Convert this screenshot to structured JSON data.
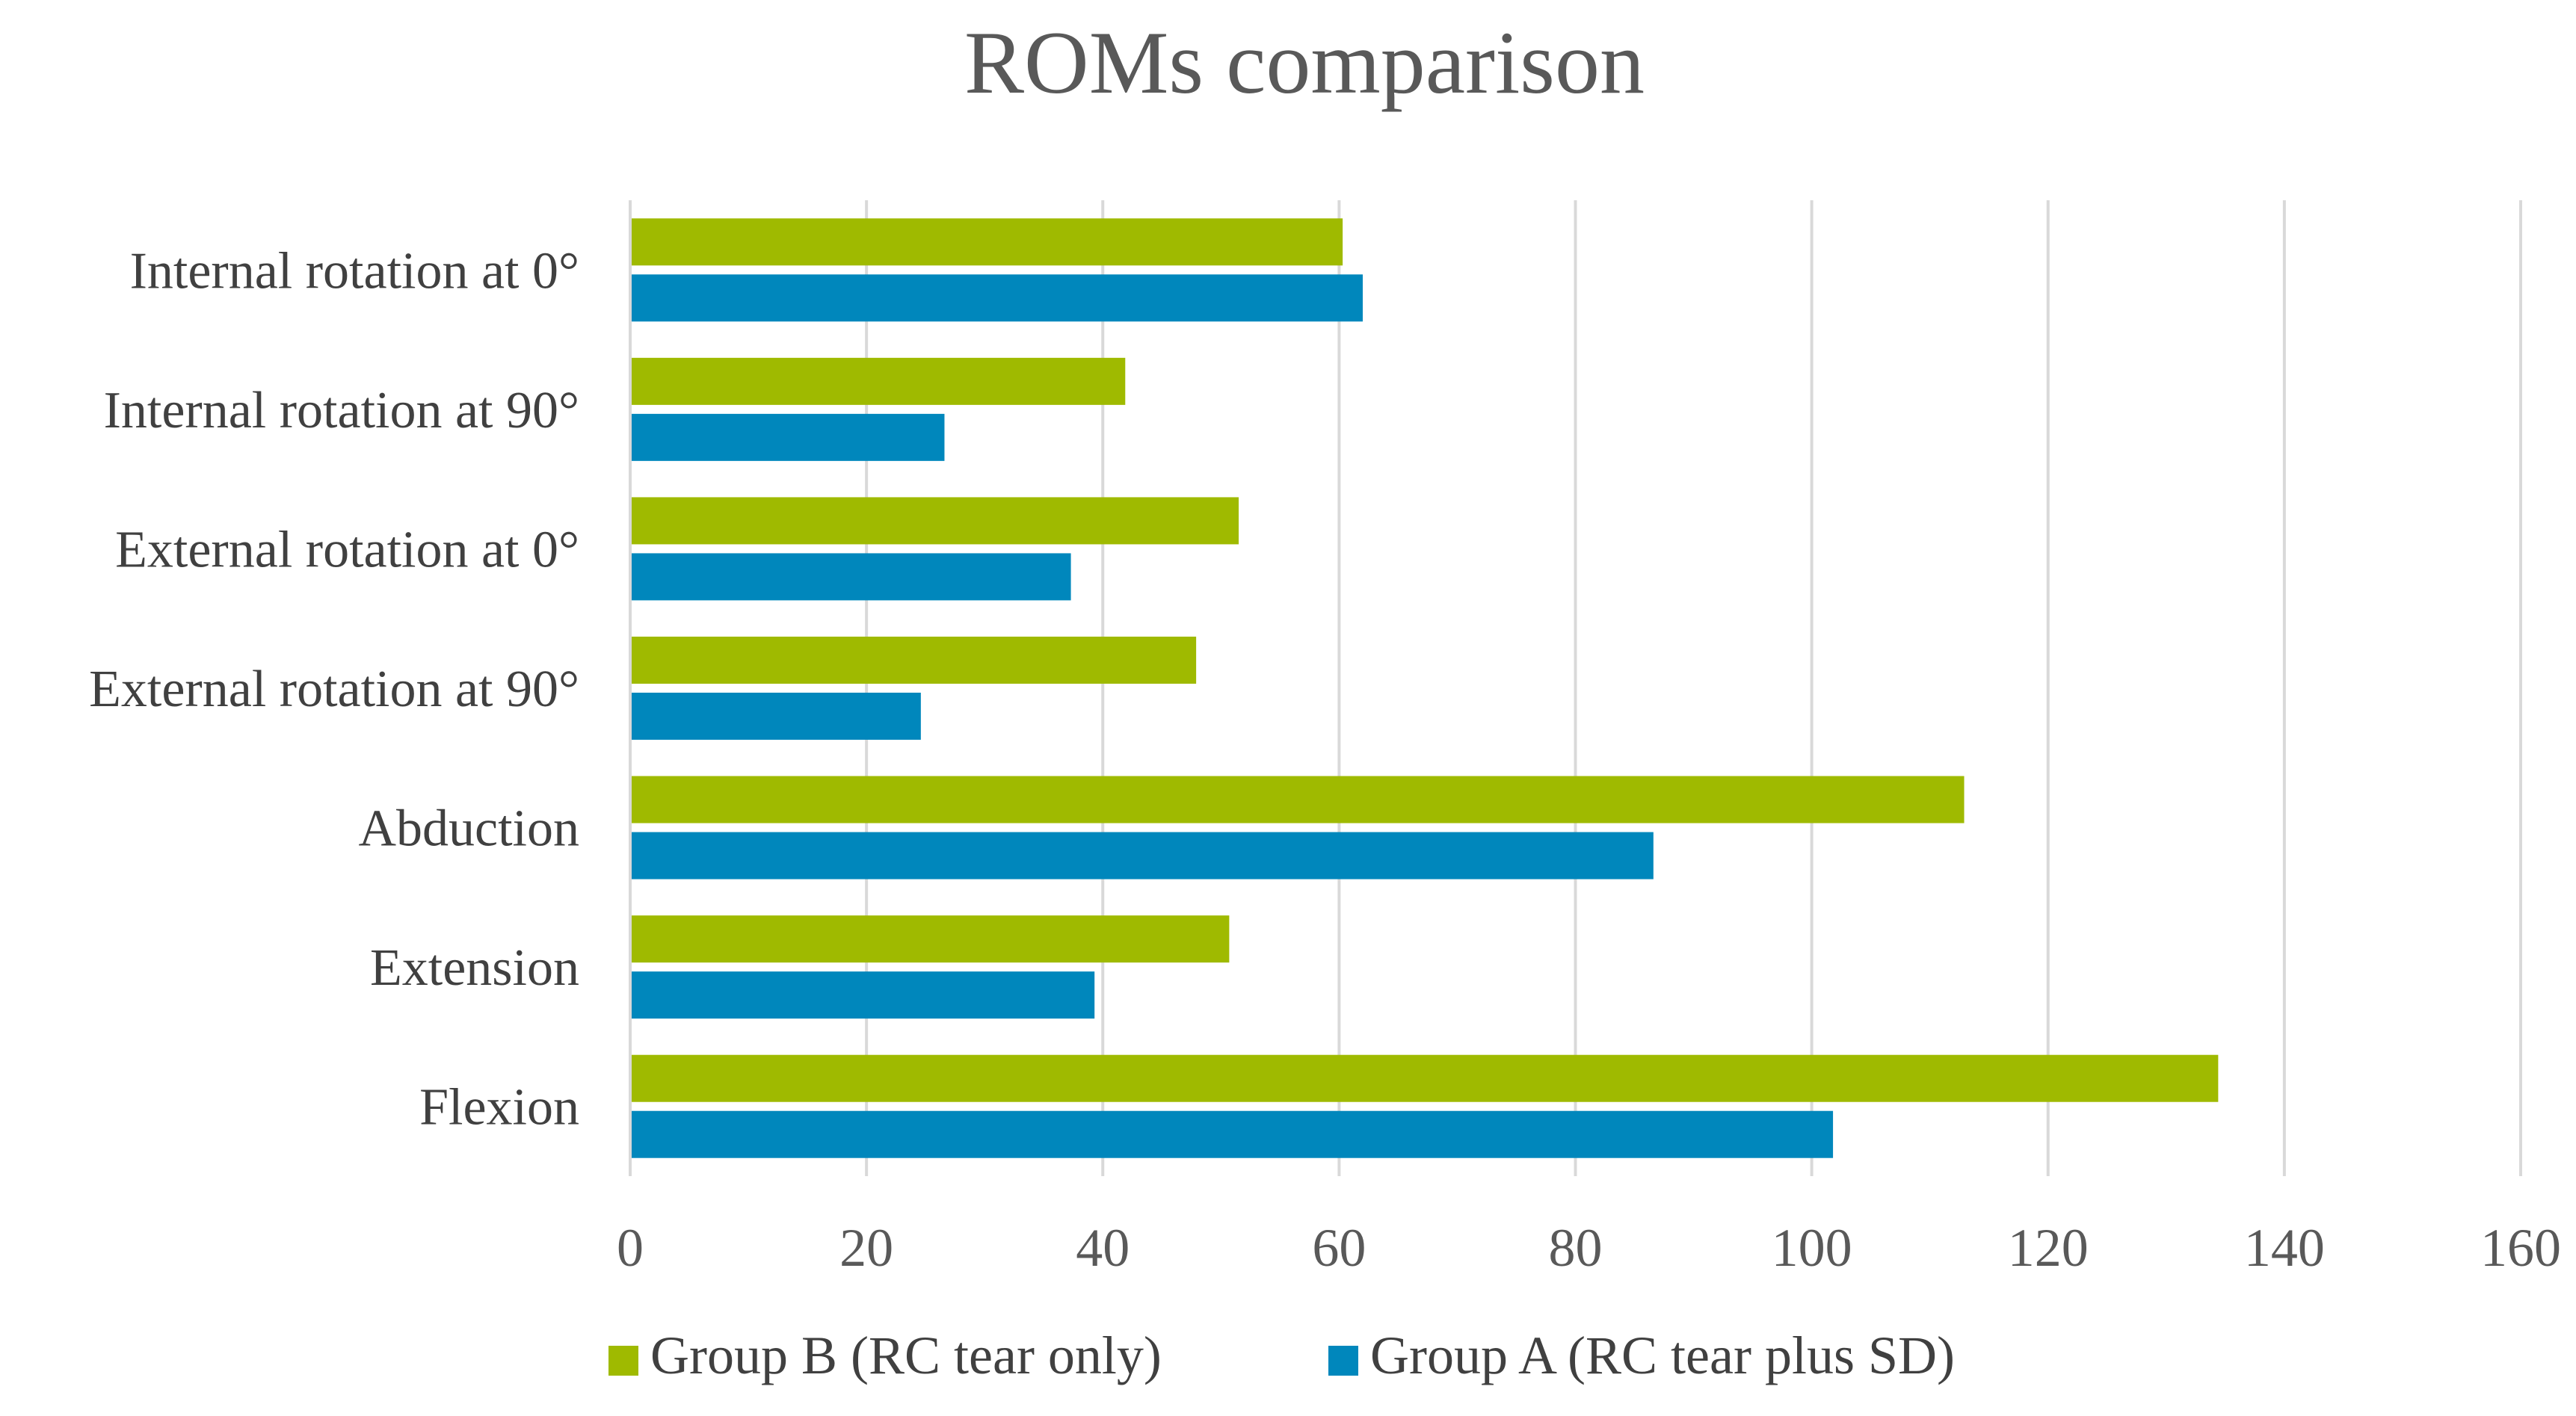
{
  "chart_data": {
    "type": "bar",
    "orientation": "horizontal",
    "title": "ROMs comparison",
    "xlabel": "",
    "ylabel": "",
    "categories": [
      "Internal rotation at 0°",
      "Internal rotation at 90°",
      "External rotation at 0°",
      "External rotation at 90°",
      "Abduction",
      "Extension",
      "Flexion"
    ],
    "series": [
      {
        "name": "Group B (RC tear only)",
        "color": "#9fba00",
        "values": [
          60.3,
          41.9,
          51.5,
          47.9,
          112.9,
          50.7,
          134.4
        ]
      },
      {
        "name": "Group A (RC tear plus SD)",
        "color": "#0087bc",
        "values": [
          62.0,
          26.6,
          37.3,
          24.6,
          86.6,
          39.3,
          101.8
        ]
      }
    ],
    "xlim": [
      0,
      160
    ],
    "xticks": [
      "0",
      "20",
      "40",
      "60",
      "80",
      "100",
      "120",
      "140",
      "160"
    ],
    "grid": true,
    "gridline_color": "#d9d9d9",
    "legend_position": "bottom-center"
  }
}
